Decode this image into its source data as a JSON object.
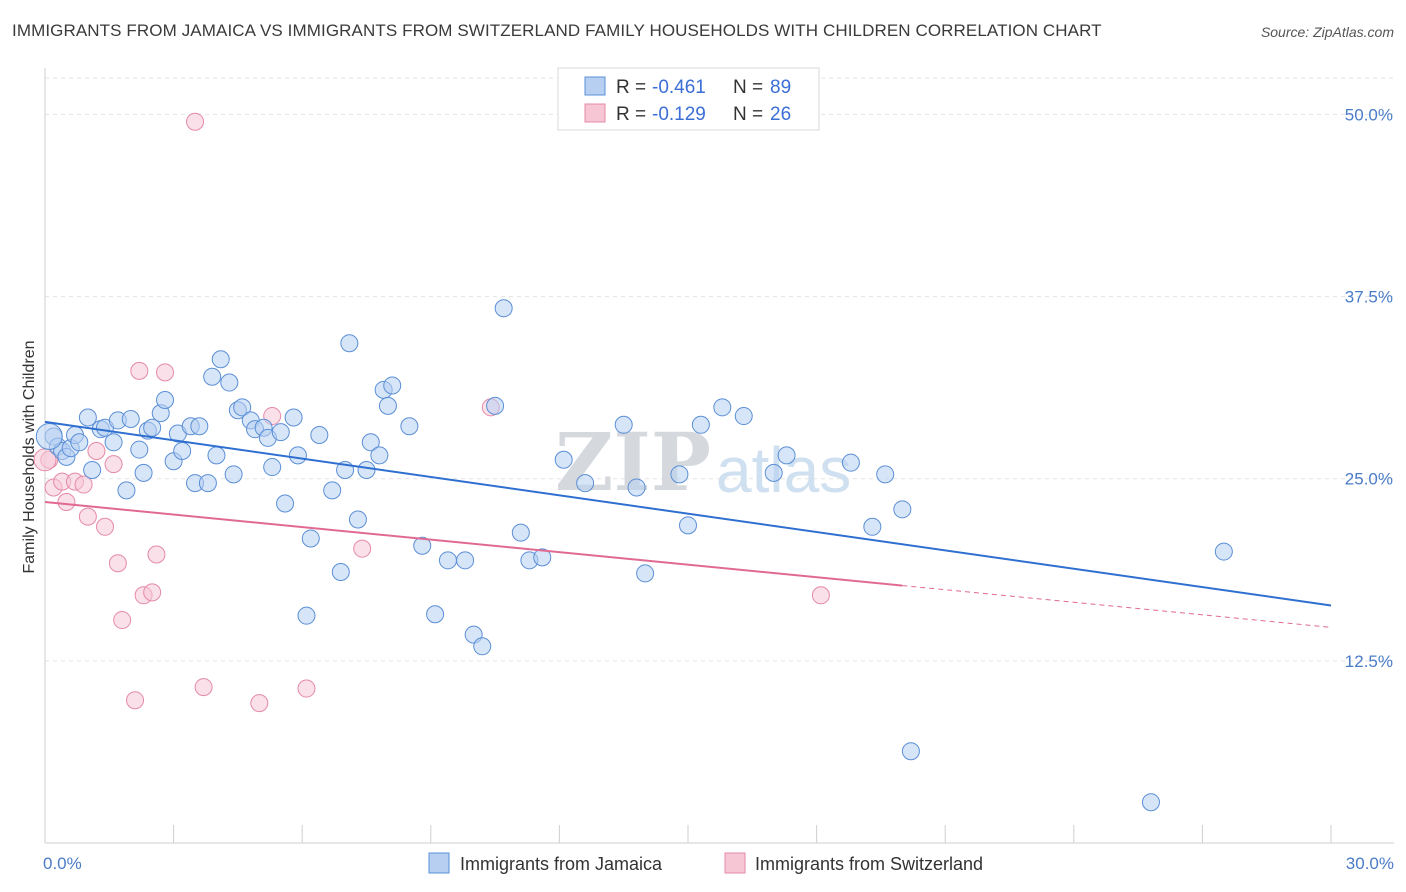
{
  "title": "IMMIGRANTS FROM JAMAICA VS IMMIGRANTS FROM SWITZERLAND FAMILY HOUSEHOLDS WITH CHILDREN CORRELATION CHART",
  "source": "Source: ZipAtlas.com",
  "watermark": {
    "zip": "ZIP",
    "atlas": "atlas"
  },
  "colors": {
    "jamaica_fill": "#b7d0f2",
    "jamaica_stroke": "#5b8fd6",
    "jamaica_line": "#2f6fd0",
    "switzerland_fill": "#f6c6d5",
    "switzerland_stroke": "#e58aa8",
    "switzerland_line": "#e06a92",
    "tick_text": "#4a7cc8"
  },
  "legend_top": {
    "r_label": "R =",
    "n_label": "N =",
    "rows": [
      {
        "series": "jamaica",
        "r": "-0.461",
        "n": "89"
      },
      {
        "series": "switzerland",
        "r": "-0.129",
        "n": "26"
      }
    ]
  },
  "legend_bottom": [
    {
      "series": "jamaica",
      "label": "Immigrants from Jamaica"
    },
    {
      "series": "switzerland",
      "label": "Immigrants from Switzerland"
    }
  ],
  "chart_data": {
    "type": "scatter",
    "title": "IMMIGRANTS FROM JAMAICA VS IMMIGRANTS FROM SWITZERLAND FAMILY HOUSEHOLDS WITH CHILDREN CORRELATION CHART",
    "xlabel": "",
    "ylabel": "Family Households with Children",
    "xlim": [
      0,
      30
    ],
    "ylim": [
      0,
      52.5
    ],
    "y_ticks": [
      12.5,
      25.0,
      37.5,
      50.0
    ],
    "y_tick_labels": [
      "12.5%",
      "25.0%",
      "37.5%",
      "50.0%"
    ],
    "x_tick_labels": [
      "0.0%",
      "30.0%"
    ],
    "grid": true,
    "legend_position": "top-center",
    "series": [
      {
        "name": "Immigrants from Jamaica",
        "key": "jamaica",
        "trend": {
          "x": [
            0,
            30
          ],
          "y": [
            28.9,
            16.3
          ],
          "dashed_from": null
        },
        "points": [
          [
            0.2,
            27.9
          ],
          [
            0.3,
            27.2
          ],
          [
            0.4,
            26.9
          ],
          [
            0.5,
            26.5
          ],
          [
            0.6,
            27.1
          ],
          [
            0.7,
            28.0
          ],
          [
            0.8,
            27.5
          ],
          [
            1.0,
            29.2
          ],
          [
            1.1,
            25.6
          ],
          [
            1.3,
            28.4
          ],
          [
            1.4,
            28.5
          ],
          [
            1.6,
            27.5
          ],
          [
            1.7,
            29.0
          ],
          [
            1.9,
            24.2
          ],
          [
            2.0,
            29.1
          ],
          [
            2.2,
            27.0
          ],
          [
            2.3,
            25.4
          ],
          [
            2.4,
            28.3
          ],
          [
            2.5,
            28.5
          ],
          [
            2.7,
            29.5
          ],
          [
            2.8,
            30.4
          ],
          [
            3.0,
            26.2
          ],
          [
            3.1,
            28.1
          ],
          [
            3.2,
            26.9
          ],
          [
            3.4,
            28.6
          ],
          [
            3.5,
            24.7
          ],
          [
            3.6,
            28.6
          ],
          [
            3.8,
            24.7
          ],
          [
            3.9,
            32.0
          ],
          [
            4.0,
            26.6
          ],
          [
            4.1,
            33.2
          ],
          [
            4.3,
            31.6
          ],
          [
            4.4,
            25.3
          ],
          [
            4.5,
            29.7
          ],
          [
            4.6,
            29.9
          ],
          [
            4.8,
            29.0
          ],
          [
            4.9,
            28.4
          ],
          [
            5.1,
            28.5
          ],
          [
            5.2,
            27.8
          ],
          [
            5.3,
            25.8
          ],
          [
            5.5,
            28.2
          ],
          [
            5.6,
            23.3
          ],
          [
            5.8,
            29.2
          ],
          [
            5.9,
            26.6
          ],
          [
            6.1,
            15.6
          ],
          [
            6.2,
            20.9
          ],
          [
            6.4,
            28.0
          ],
          [
            6.7,
            24.2
          ],
          [
            6.9,
            18.6
          ],
          [
            7.0,
            25.6
          ],
          [
            7.1,
            34.3
          ],
          [
            7.3,
            22.2
          ],
          [
            7.5,
            25.6
          ],
          [
            7.6,
            27.5
          ],
          [
            7.8,
            26.6
          ],
          [
            7.9,
            31.1
          ],
          [
            8.0,
            30.0
          ],
          [
            8.1,
            31.4
          ],
          [
            8.5,
            28.6
          ],
          [
            8.8,
            20.4
          ],
          [
            9.1,
            15.7
          ],
          [
            9.4,
            19.4
          ],
          [
            9.8,
            19.4
          ],
          [
            10.0,
            14.3
          ],
          [
            10.2,
            13.5
          ],
          [
            10.5,
            30.0
          ],
          [
            10.7,
            36.7
          ],
          [
            11.1,
            21.3
          ],
          [
            11.3,
            19.4
          ],
          [
            11.6,
            19.6
          ],
          [
            12.1,
            26.3
          ],
          [
            12.6,
            24.7
          ],
          [
            13.5,
            28.7
          ],
          [
            13.8,
            24.4
          ],
          [
            14.0,
            18.5
          ],
          [
            14.8,
            25.3
          ],
          [
            15.0,
            21.8
          ],
          [
            15.3,
            28.7
          ],
          [
            15.8,
            29.9
          ],
          [
            16.3,
            29.3
          ],
          [
            17.0,
            25.4
          ],
          [
            17.3,
            26.6
          ],
          [
            18.8,
            26.1
          ],
          [
            19.3,
            21.7
          ],
          [
            19.6,
            25.3
          ],
          [
            20.0,
            22.9
          ],
          [
            20.2,
            6.3
          ],
          [
            25.8,
            2.8
          ],
          [
            27.5,
            20.0
          ]
        ]
      },
      {
        "name": "Immigrants from Switzerland",
        "key": "switzerland",
        "trend": {
          "x": [
            0,
            30
          ],
          "y": [
            23.4,
            14.8
          ],
          "dashed_from": 20.0
        },
        "points": [
          [
            0.1,
            26.3
          ],
          [
            0.2,
            24.4
          ],
          [
            0.4,
            24.8
          ],
          [
            0.5,
            23.4
          ],
          [
            0.7,
            24.8
          ],
          [
            0.9,
            24.6
          ],
          [
            1.0,
            22.4
          ],
          [
            1.2,
            26.9
          ],
          [
            1.4,
            21.7
          ],
          [
            1.6,
            26.0
          ],
          [
            1.7,
            19.2
          ],
          [
            1.8,
            15.3
          ],
          [
            2.1,
            9.8
          ],
          [
            2.2,
            32.4
          ],
          [
            2.3,
            17.0
          ],
          [
            2.5,
            17.2
          ],
          [
            2.6,
            19.8
          ],
          [
            2.8,
            32.3
          ],
          [
            3.5,
            49.5
          ],
          [
            3.7,
            10.7
          ],
          [
            5.0,
            9.6
          ],
          [
            5.3,
            29.3
          ],
          [
            6.1,
            10.6
          ],
          [
            7.4,
            20.2
          ],
          [
            10.4,
            29.9
          ],
          [
            18.1,
            17.0
          ]
        ]
      }
    ]
  }
}
